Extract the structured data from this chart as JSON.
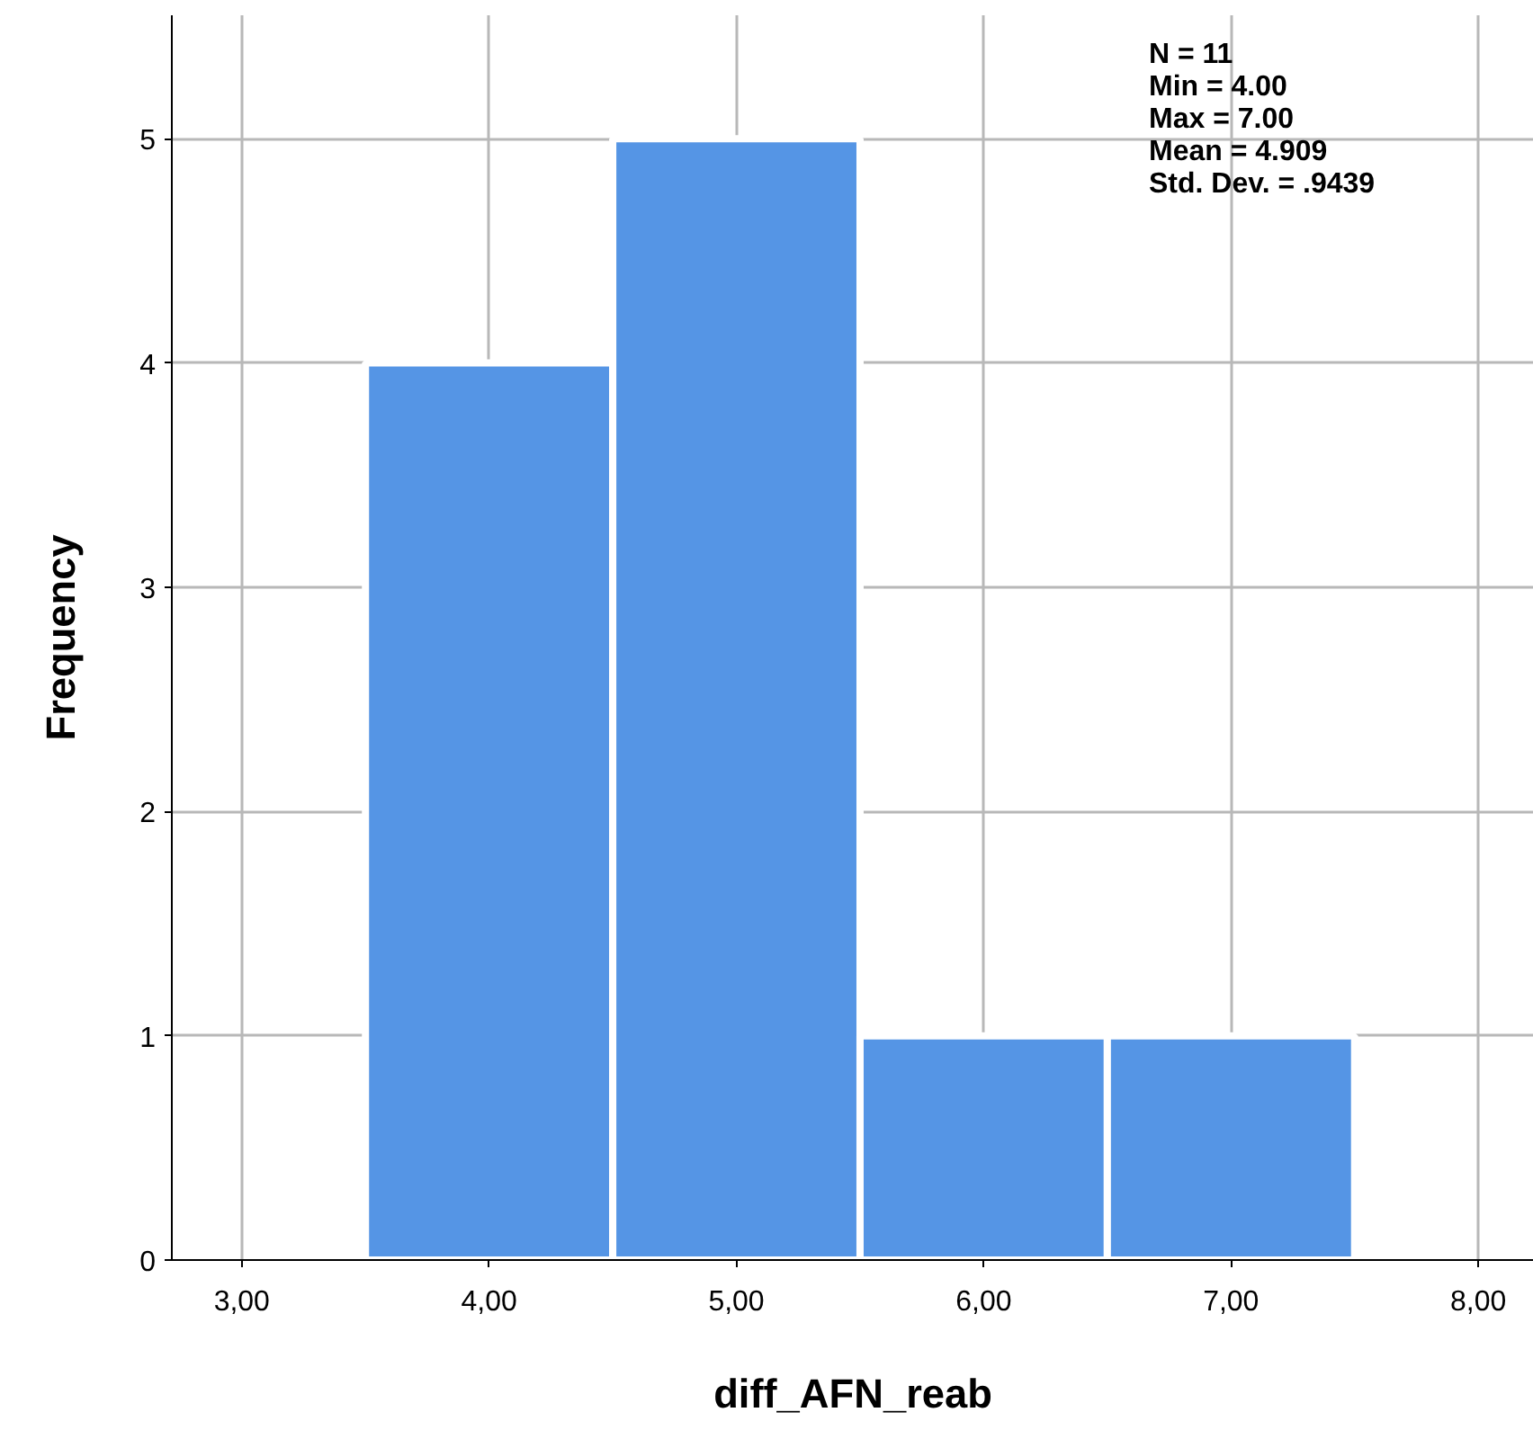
{
  "chart_data": {
    "type": "histogram",
    "xlabel": "diff_AFN_reab",
    "ylabel": "Frequency",
    "bins": [
      3.5,
      4.5,
      5.5,
      6.5,
      7.5
    ],
    "values": [
      4,
      5,
      1,
      1
    ],
    "color": "#5595e5",
    "xlim": [
      2.717,
      8.225
    ],
    "ylim": [
      0,
      5.55
    ],
    "xticks": [
      {
        "value": 3,
        "label": "3,00"
      },
      {
        "value": 4,
        "label": "4,00"
      },
      {
        "value": 5,
        "label": "5,00"
      },
      {
        "value": 6,
        "label": "6,00"
      },
      {
        "value": 7,
        "label": "7,00"
      },
      {
        "value": 8,
        "label": "8,00"
      }
    ],
    "yticks": [
      0,
      1,
      2,
      3,
      4,
      5
    ],
    "grid": true,
    "annotations": [
      "N = 11",
      "Min = 4.00",
      "Max = 7.00",
      "Mean = 4.909",
      "Std. Dev. = .9439"
    ]
  }
}
